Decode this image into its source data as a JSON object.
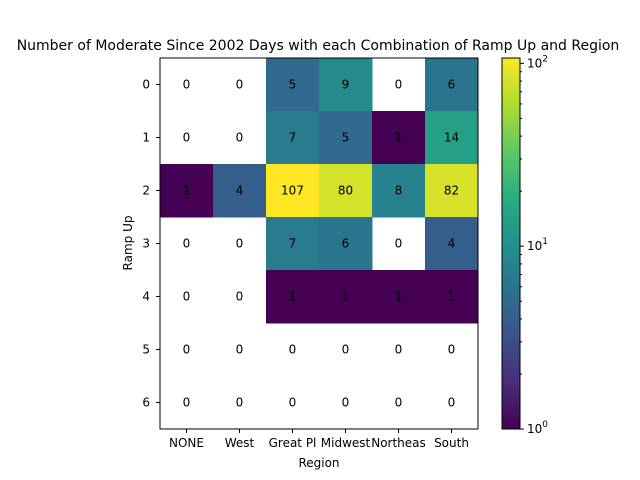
{
  "chart_data": {
    "type": "heatmap",
    "title": "Number of Moderate Since 2002 Days with each Combination of Ramp Up and Region",
    "xlabel": "Region",
    "ylabel": "Ramp Up",
    "x_categories": [
      "NONE",
      "West",
      "Great Pl",
      "Midwest",
      "Northeas",
      "South"
    ],
    "y_categories": [
      "0",
      "1",
      "2",
      "3",
      "4",
      "5",
      "6"
    ],
    "values": [
      [
        0,
        0,
        5,
        9,
        0,
        6
      ],
      [
        0,
        0,
        7,
        5,
        1,
        14
      ],
      [
        1,
        4,
        107,
        80,
        8,
        82
      ],
      [
        0,
        0,
        7,
        6,
        0,
        4
      ],
      [
        0,
        0,
        1,
        1,
        1,
        1
      ],
      [
        0,
        0,
        0,
        0,
        0,
        0
      ],
      [
        0,
        0,
        0,
        0,
        0,
        0
      ]
    ],
    "color_scale": "log",
    "colormap": "viridis",
    "zero_color": "#ffffff",
    "colorbar": {
      "range": [
        1,
        107
      ],
      "tick_labels": [
        {
          "value": 1,
          "base": "10",
          "exp": "0"
        },
        {
          "value": 10,
          "base": "10",
          "exp": "1"
        },
        {
          "value": 100,
          "base": "10",
          "exp": "2"
        }
      ],
      "minor_ticks": [
        2,
        3,
        4,
        5,
        6,
        7,
        8,
        9,
        20,
        30,
        40,
        50,
        60,
        70,
        80,
        90
      ]
    }
  }
}
